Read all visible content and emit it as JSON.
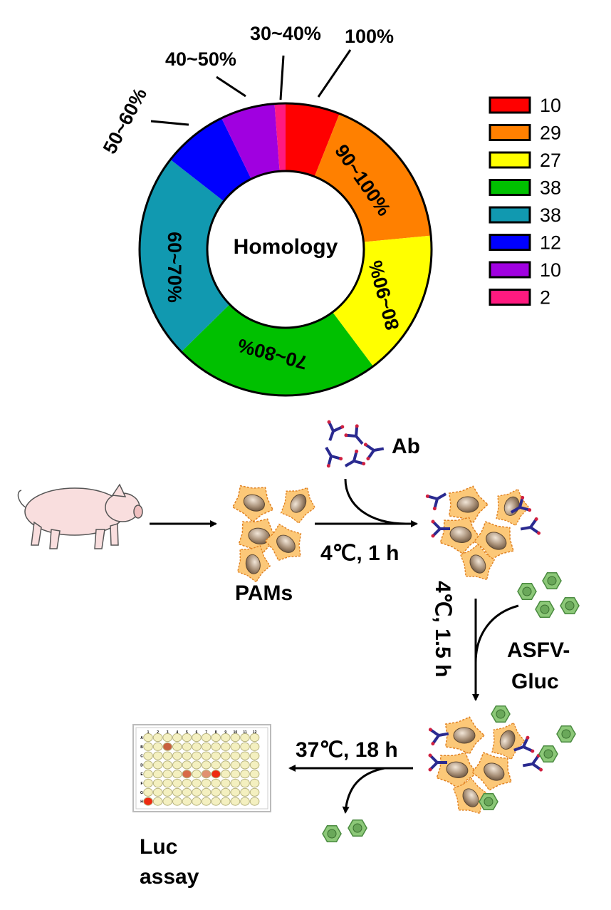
{
  "chart_data": {
    "type": "pie",
    "variant": "donut",
    "center_label": "Homology",
    "categories": [
      "100%",
      "90~100%",
      "80~90%",
      "70~80%",
      "60~70%",
      "50~60%",
      "40~50%",
      "30~40%"
    ],
    "values": [
      10,
      29,
      27,
      38,
      38,
      12,
      10,
      2
    ],
    "colors": [
      "#ff0000",
      "#ff8000",
      "#ffff00",
      "#00c000",
      "#1199b0",
      "#0000ff",
      "#a000e0",
      "#ff1a80"
    ],
    "legend": {
      "placement": "right",
      "entries": [
        "10",
        "29",
        "27",
        "38",
        "38",
        "12",
        "10",
        "2"
      ]
    }
  },
  "diagram": {
    "antibody_label": "Ab",
    "cells_label": "PAMs",
    "step1_condition": "4℃, 1 h",
    "step2_condition": "4℃, 1.5 h",
    "virus_label_line1": "ASFV-",
    "virus_label_line2": "Gluc",
    "step3_condition": "37℃, 18 h",
    "assay_label_line1": "Luc",
    "assay_label_line2": "assay",
    "plate_columns": [
      "1",
      "2",
      "3",
      "4",
      "5",
      "6",
      "7",
      "8",
      "9",
      "10",
      "11",
      "12"
    ],
    "plate_rows": [
      "A",
      "B",
      "C",
      "D",
      "E",
      "F",
      "G",
      "H"
    ]
  }
}
